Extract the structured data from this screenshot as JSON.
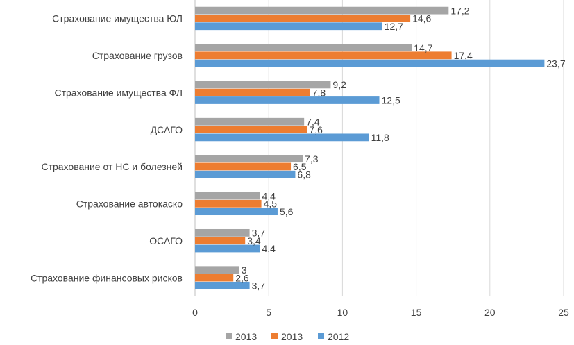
{
  "chart_data": {
    "type": "bar",
    "orientation": "horizontal",
    "title": "",
    "xlabel": "",
    "ylabel": "",
    "xlim": [
      0,
      25
    ],
    "x_ticks": [
      "0",
      "5",
      "10",
      "15",
      "20",
      "25"
    ],
    "grid": "vertical",
    "legend_position": "bottom",
    "categories": [
      "Страхование имущества ЮЛ",
      "Страхование грузов",
      "Страхование имущества ФЛ",
      "ДСАГО",
      "Страхование от НС и болезней",
      "Страхование автокаско",
      "ОСАГО",
      "Страхование финансовых рисков"
    ],
    "series": [
      {
        "name": "2013",
        "color": "#a5a5a5",
        "values": [
          17.2,
          14.7,
          9.2,
          7.4,
          7.3,
          4.4,
          3.7,
          3
        ],
        "labels": [
          "17,2",
          "14,7",
          "9,2",
          "7,4",
          "7,3",
          "4,4",
          "3,7",
          "3"
        ]
      },
      {
        "name": "2013",
        "color": "#ed7d31",
        "values": [
          14.6,
          17.4,
          7.8,
          7.6,
          6.5,
          4.5,
          3.4,
          2.6
        ],
        "labels": [
          "14,6",
          "17,4",
          "7,8",
          "7,6",
          "6,5",
          "4,5",
          "3,4",
          "2,6"
        ]
      },
      {
        "name": "2012",
        "color": "#5b9bd5",
        "values": [
          12.7,
          23.7,
          12.5,
          11.8,
          6.8,
          5.6,
          4.4,
          3.7
        ],
        "labels": [
          "12,7",
          "23,7",
          "12,5",
          "11,8",
          "6,8",
          "5,6",
          "4,4",
          "3,7"
        ]
      }
    ]
  }
}
